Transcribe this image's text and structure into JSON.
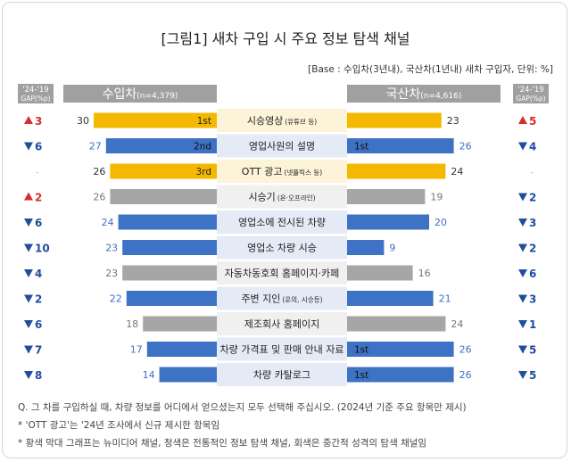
{
  "title": "[그림1] 새차 구입 시 주요 정보 탐색 채널",
  "base_note": "[Base : 수입차(3년내), 국산차(1년내) 새차 구입자, 단위: %]",
  "headers": {
    "gap_left": [
      "'24-'19",
      "GAP(%p)"
    ],
    "gap_right": [
      "'24-'19",
      "GAP(%p)"
    ],
    "import_label": "수입차",
    "import_n": "(n=4,379)",
    "domestic_label": "국산차",
    "domestic_n": "(n=4,616)"
  },
  "colors": {
    "yellow": "#f5b800",
    "blue": "#3e72c4",
    "gray": "#a6a6a6",
    "label_bg_yellow": "#fcf3d8",
    "label_bg_blue": "#e4ebf6",
    "label_bg_gray": "#f0f0f0",
    "header_gray": "#a0a0a0",
    "up_red": "#d62d2d",
    "down_blue": "#1f4e9c"
  },
  "chart_data": {
    "type": "bar",
    "layout": "butterfly",
    "categories": [
      {
        "label": "시승영상",
        "sub": "(유튜브 등)"
      },
      {
        "label": "영업사원의 설명",
        "sub": ""
      },
      {
        "label": "OTT 광고",
        "sub": "(넷플릭스 등)"
      },
      {
        "label": "시승기",
        "sub": "(온·오프라인)"
      },
      {
        "label": "영업소에 전시된 차량",
        "sub": ""
      },
      {
        "label": "영업소 차량 시승",
        "sub": ""
      },
      {
        "label": "자동차동호회 홈페이지·카페",
        "sub": ""
      },
      {
        "label": "주변 지인",
        "sub": "(운의, 시승등)"
      },
      {
        "label": "제조회사 홈페이지",
        "sub": ""
      },
      {
        "label": "차량 가격표 및 판매 안내 자료",
        "sub": ""
      },
      {
        "label": "차량 카탈로그",
        "sub": ""
      }
    ],
    "channel_type": [
      "yellow",
      "blue",
      "yellow",
      "gray",
      "blue",
      "blue",
      "gray",
      "blue",
      "gray",
      "blue",
      "blue"
    ],
    "series": [
      {
        "name": "수입차",
        "values": [
          30,
          27,
          26,
          26,
          24,
          23,
          23,
          22,
          18,
          17,
          14
        ]
      },
      {
        "name": "국산차",
        "values": [
          23,
          26,
          24,
          19,
          20,
          9,
          16,
          21,
          24,
          26,
          26
        ]
      }
    ],
    "import_rank": [
      "1st",
      "2nd",
      "3rd",
      "",
      "",
      "",
      "",
      "",
      "",
      "",
      ""
    ],
    "domestic_rank": [
      "",
      "1st",
      "",
      "",
      "",
      "",
      "",
      "",
      "",
      "1st",
      "1st"
    ],
    "import_gap": [
      {
        "dir": "up",
        "val": "3"
      },
      {
        "dir": "down",
        "val": "6"
      },
      {
        "dir": "none",
        "val": "-"
      },
      {
        "dir": "up",
        "val": "2"
      },
      {
        "dir": "down",
        "val": "6"
      },
      {
        "dir": "down",
        "val": "10"
      },
      {
        "dir": "down",
        "val": "4"
      },
      {
        "dir": "down",
        "val": "2"
      },
      {
        "dir": "down",
        "val": "6"
      },
      {
        "dir": "down",
        "val": "7"
      },
      {
        "dir": "down",
        "val": "8"
      }
    ],
    "domestic_gap": [
      {
        "dir": "up",
        "val": "5"
      },
      {
        "dir": "down",
        "val": "4"
      },
      {
        "dir": "none",
        "val": "-"
      },
      {
        "dir": "down",
        "val": "2"
      },
      {
        "dir": "down",
        "val": "3"
      },
      {
        "dir": "down",
        "val": "2"
      },
      {
        "dir": "down",
        "val": "6"
      },
      {
        "dir": "down",
        "val": "3"
      },
      {
        "dir": "down",
        "val": "1"
      },
      {
        "dir": "down",
        "val": "5"
      },
      {
        "dir": "down",
        "val": "5"
      }
    ],
    "xlim": [
      0,
      30
    ]
  },
  "notes": [
    "Q. 그 차를 구입하실 때, 차량 정보를 어디에서 얻으셨는지 모두 선택해 주십시오. (2024년 기준 주요 항목만 제시)",
    "* 'OTT 광고'는 '24년 조사에서 신규 제시한 항목임",
    "* 황색 막대 그래프는 뉴미디어 채널, 청색은 전통적인 정보 탐색 채널, 회색은 중간적 성격의 탐색 채널임"
  ]
}
